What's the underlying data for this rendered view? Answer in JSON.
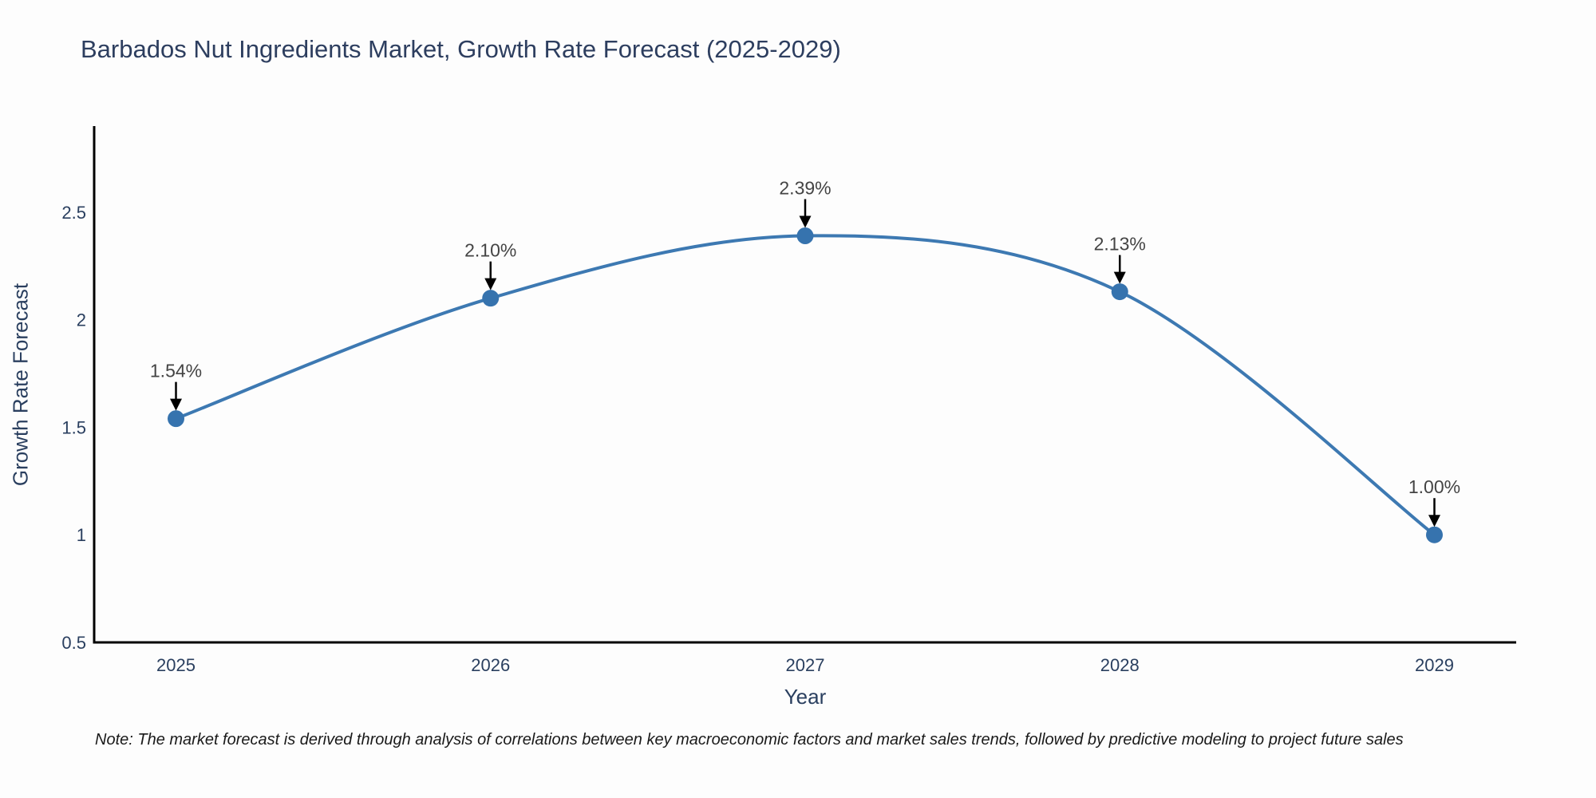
{
  "page": {
    "background": "#fdfdfd"
  },
  "chart_data": {
    "type": "line",
    "title": "Barbados Nut Ingredients Market, Growth Rate Forecast (2025-2029)",
    "xlabel": "Year",
    "ylabel": "Growth Rate Forecast",
    "x": [
      2025,
      2026,
      2027,
      2028,
      2029
    ],
    "series": [
      {
        "name": "Growth Rate Forecast",
        "values": [
          1.54,
          2.1,
          2.39,
          2.13,
          1.0
        ]
      }
    ],
    "point_labels": [
      "1.54%",
      "2.10%",
      "2.39%",
      "2.13%",
      "1.00%"
    ],
    "x_tick_labels": [
      "2025",
      "2026",
      "2027",
      "2028",
      "2029"
    ],
    "y_ticks": [
      0.5,
      1,
      1.5,
      2,
      2.5
    ],
    "y_tick_labels": [
      "0.5",
      "1",
      "1.5",
      "2",
      "2.5"
    ],
    "xlim": [
      2024.74,
      2029.26
    ],
    "ylim": [
      0.5,
      2.9
    ],
    "grid": false,
    "legend": "none",
    "line_shape": "spline",
    "colors": {
      "line": "#3d79b2",
      "marker": "#3673ae",
      "axis": "#000000",
      "tick_label": "#2a3f5f",
      "title": "#2d3e5f",
      "axis_title": "#2a3f5f",
      "annotation_text": "#444444",
      "annotation_arrow": "#000000"
    }
  },
  "footer": {
    "note": "Note: The market forecast is derived through analysis of correlations between key macroeconomic factors and market sales trends, followed by predictive modeling to project future sales",
    "text_color": "#1a1a1a"
  }
}
